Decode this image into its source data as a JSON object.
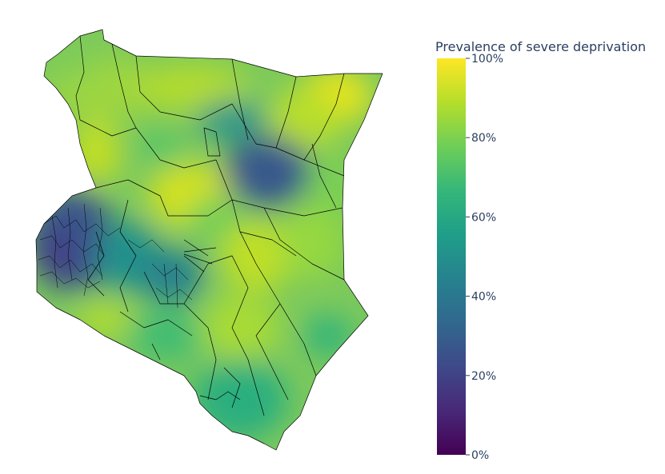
{
  "colorbar": {
    "title": "Prevalence of severe deprivation",
    "ticks": [
      {
        "value": 0,
        "label": "0%"
      },
      {
        "value": 20,
        "label": "20%"
      },
      {
        "value": 40,
        "label": "40%"
      },
      {
        "value": 60,
        "label": "60%"
      },
      {
        "value": 80,
        "label": "80%"
      },
      {
        "value": 100,
        "label": "100%"
      }
    ],
    "range": [
      0,
      100
    ],
    "colorscale": "viridis",
    "stops": [
      "#440154",
      "#482878",
      "#3e4989",
      "#31688e",
      "#26828e",
      "#1f9e89",
      "#35b779",
      "#6ece58",
      "#b5de2b",
      "#fde725"
    ]
  },
  "map": {
    "region": "Kenya",
    "boundary_color": "#000000",
    "base_color": "#7fcb5a"
  }
}
